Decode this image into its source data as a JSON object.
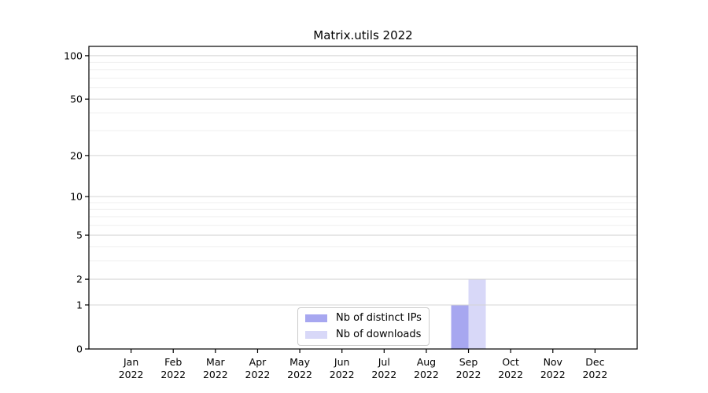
{
  "figure": {
    "title": "Matrix.utils 2022"
  },
  "legend": {
    "entries": [
      {
        "label": "Nb of distinct IPs",
        "color": "#a7a7f0"
      },
      {
        "label": "Nb of downloads",
        "color": "#d8d8f8"
      }
    ]
  },
  "chart_data": {
    "type": "bar",
    "title": "Matrix.utils 2022",
    "categories": [
      "Jan 2022",
      "Feb 2022",
      "Mar 2022",
      "Apr 2022",
      "May 2022",
      "Jun 2022",
      "Jul 2022",
      "Aug 2022",
      "Sep 2022",
      "Oct 2022",
      "Nov 2022",
      "Dec 2022"
    ],
    "series": [
      {
        "name": "Nb of distinct IPs",
        "color": "#a7a7f0",
        "values": [
          0,
          0,
          0,
          0,
          0,
          0,
          0,
          0,
          1,
          0,
          0,
          0
        ]
      },
      {
        "name": "Nb of downloads",
        "color": "#d8d8f8",
        "values": [
          0,
          0,
          0,
          0,
          0,
          0,
          0,
          0,
          2,
          0,
          0,
          0
        ]
      }
    ],
    "xlabel": "",
    "ylabel": "",
    "yscale": "log1p",
    "y_major_ticks": [
      0,
      1,
      2,
      5,
      10,
      20,
      50,
      100
    ],
    "y_minor_ticks": [
      3,
      4,
      6,
      7,
      8,
      9,
      30,
      40,
      60,
      70,
      80,
      90
    ],
    "ylim": [
      0,
      116
    ],
    "grid": true,
    "legend_position": "lower center inside axes",
    "colors": {
      "major_grid": "#d4d4d4",
      "minor_grid": "#f0f0f0",
      "axis": "#000000"
    }
  }
}
